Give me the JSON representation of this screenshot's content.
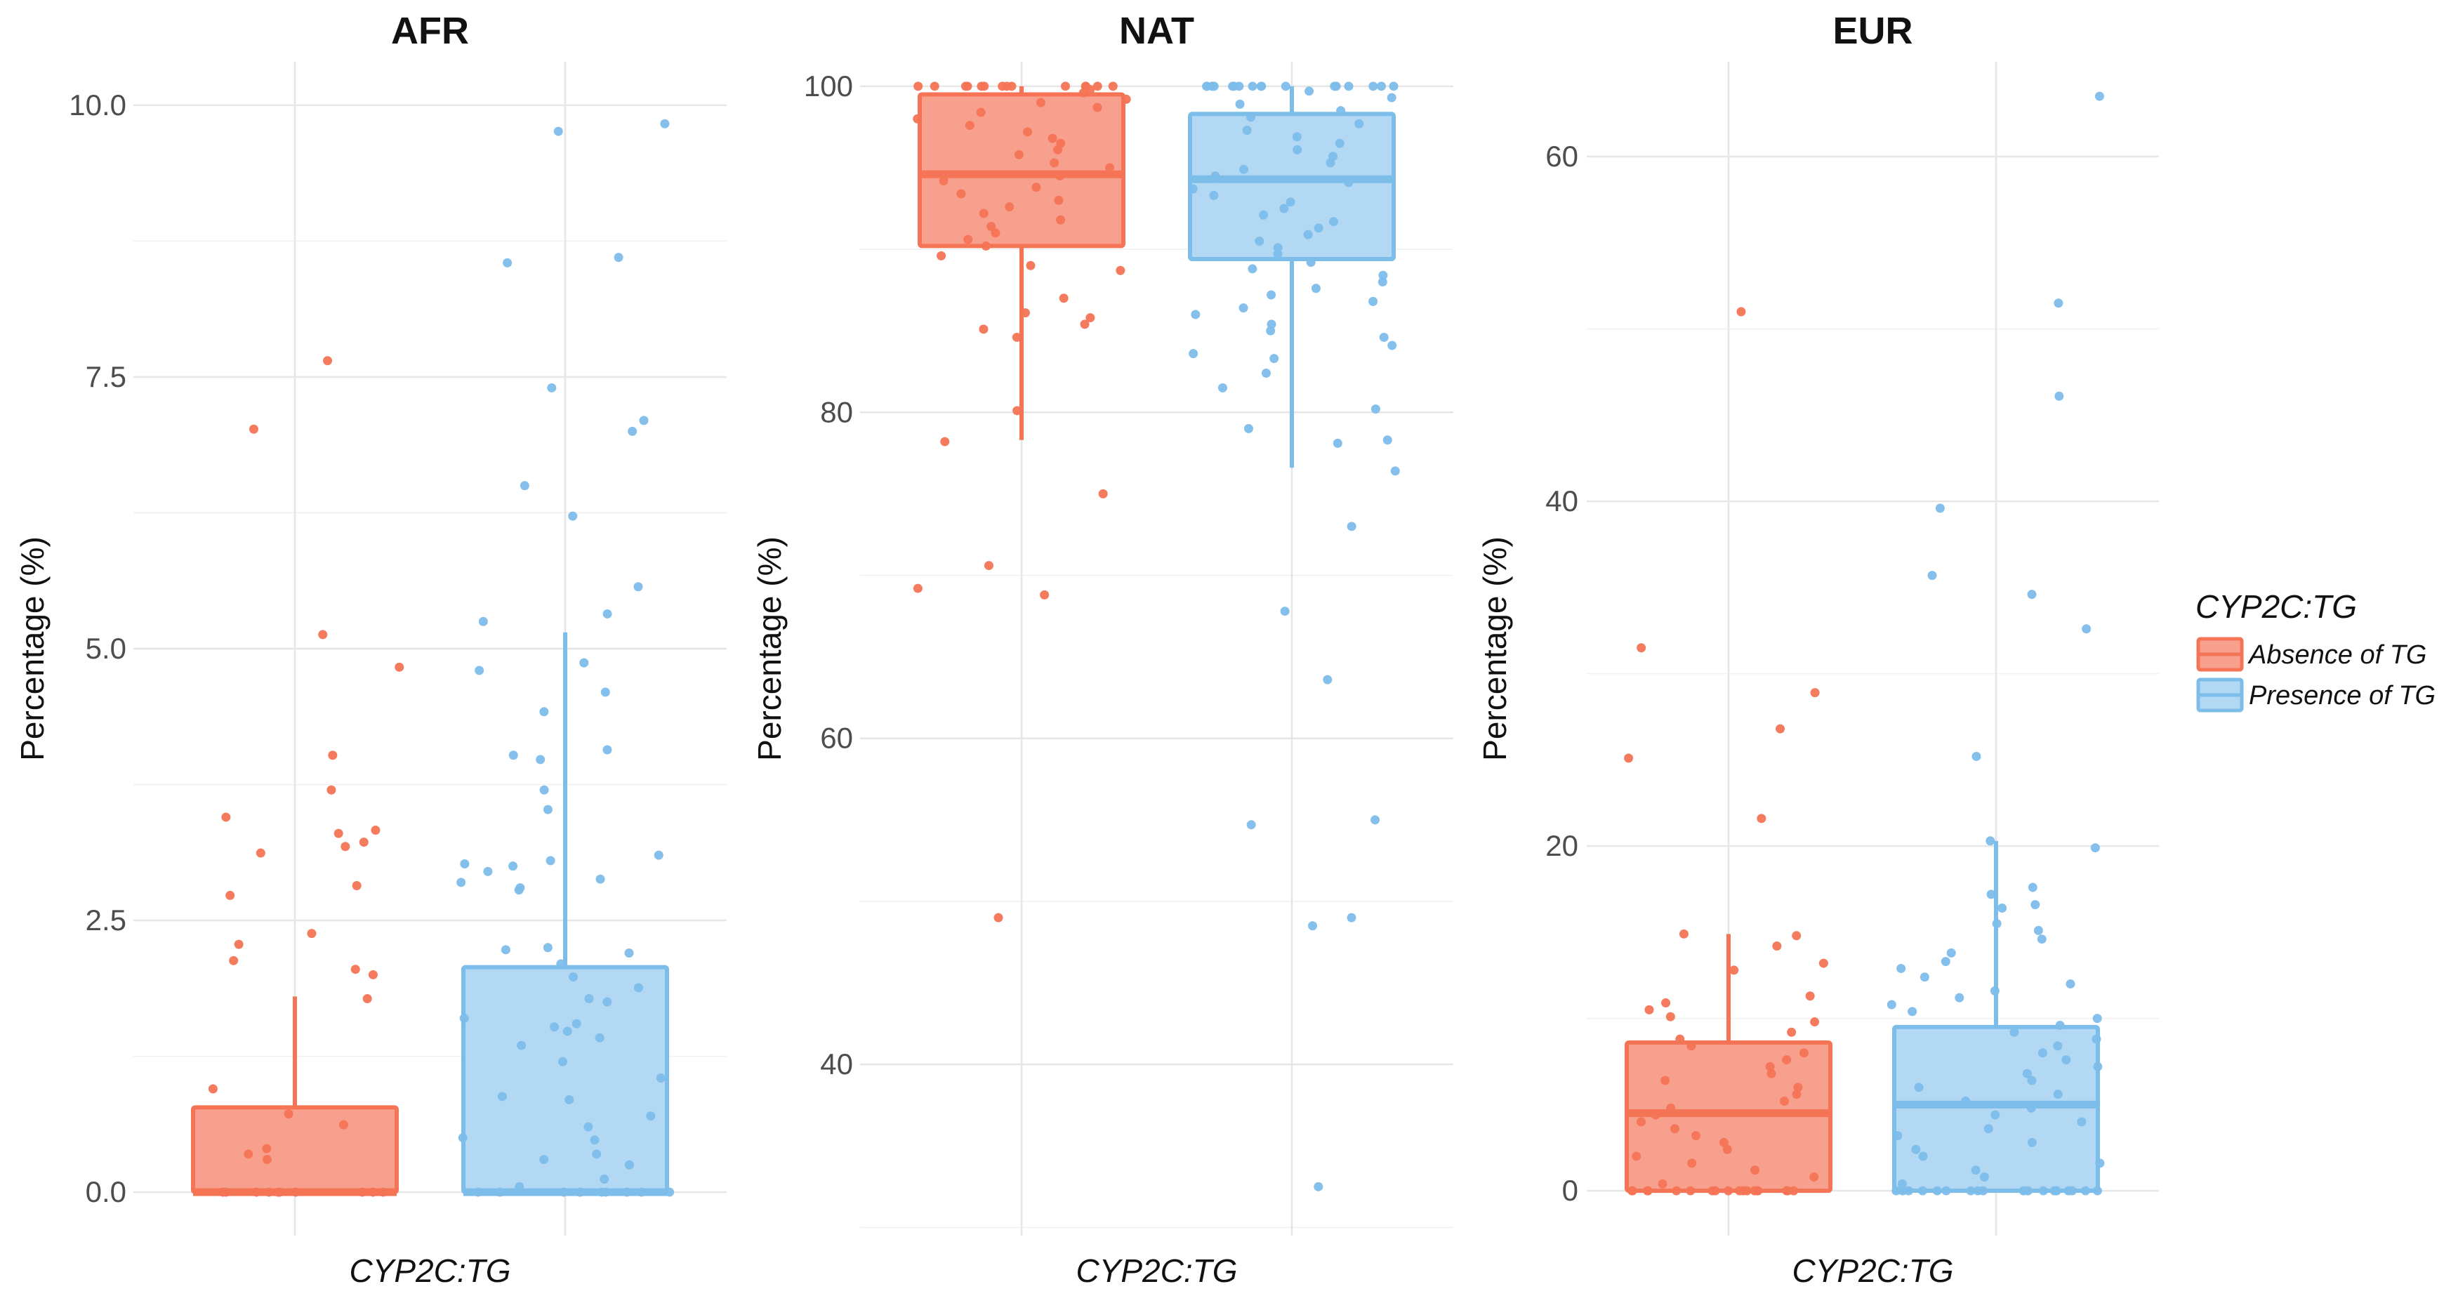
{
  "colors": {
    "absence_fill": "#F8A08E",
    "absence_line": "#F47455",
    "presence_fill": "#B3D8F4",
    "presence_line": "#7DBDEA",
    "grid_major": "#E6E6E6",
    "grid_minor": "#F1F1F1",
    "text": "#111111",
    "tick_text": "#4D4D4D"
  },
  "legend": {
    "title": "CYP2C:TG",
    "items": [
      {
        "key": "absence",
        "label": "Absence of TG"
      },
      {
        "key": "presence",
        "label": "Presence of TG"
      }
    ],
    "position": "right"
  },
  "chart_data": [
    {
      "type": "box",
      "title": "AFR",
      "xlabel": "CYP2C:TG",
      "ylabel": "Percentage (%)",
      "ylim": [
        -0.4,
        10.4
      ],
      "yticks": [
        "0.0",
        "2.5",
        "5.0",
        "7.5",
        "10.0"
      ],
      "ytick_values": [
        0,
        2.5,
        5,
        7.5,
        10
      ],
      "series": [
        {
          "name": "Absence of TG",
          "key": "absence",
          "box": {
            "q1": 0,
            "median": 0,
            "q3": 0.78,
            "whisker_low": 0,
            "whisker_high": 1.8
          },
          "points": [
            7.65,
            7.02,
            5.13,
            4.83,
            4.02,
            3.7,
            3.45,
            3.33,
            3.3,
            3.22,
            3.18,
            3.12,
            2.82,
            2.73,
            2.38,
            2.28,
            2.13,
            2.05,
            2.0,
            1.78,
            0.95,
            0.72,
            0.62,
            0.4,
            0.35,
            0.3,
            0,
            0,
            0,
            0,
            0,
            0,
            0,
            0,
            0,
            0
          ]
        },
        {
          "name": "Presence of TG",
          "key": "presence",
          "box": {
            "q1": 0,
            "median": 0,
            "q3": 2.07,
            "whisker_low": 0,
            "whisker_high": 5.15
          },
          "points": [
            9.83,
            9.76,
            8.6,
            8.55,
            7.4,
            7.1,
            7.0,
            6.5,
            6.22,
            5.57,
            5.32,
            5.25,
            4.87,
            4.8,
            4.6,
            4.42,
            4.07,
            4.02,
            3.98,
            3.7,
            3.52,
            3.1,
            3.05,
            3.02,
            3.0,
            2.95,
            2.88,
            2.85,
            2.8,
            2.78,
            2.25,
            2.23,
            2.2,
            2.1,
            1.98,
            1.88,
            1.78,
            1.75,
            1.6,
            1.55,
            1.52,
            1.48,
            1.42,
            1.35,
            1.2,
            1.05,
            0.88,
            0.85,
            0.7,
            0.6,
            0.5,
            0.48,
            0.35,
            0.3,
            0.25,
            0.12,
            0.05,
            0,
            0,
            0,
            0,
            0,
            0,
            0,
            0,
            0,
            0
          ]
        }
      ]
    },
    {
      "type": "box",
      "title": "NAT",
      "xlabel": "CYP2C:TG",
      "ylabel": "Percentage (%)",
      "ylim": [
        29.5,
        101.5
      ],
      "yticks": [
        "40",
        "60",
        "80",
        "100"
      ],
      "ytick_values": [
        40,
        60,
        80,
        100
      ],
      "series": [
        {
          "name": "Absence of TG",
          "key": "absence",
          "box": {
            "q1": 90.2,
            "median": 94.6,
            "q3": 99.5,
            "whisker_low": 78.3,
            "whisker_high": 100
          },
          "points": [
            100,
            100,
            100,
            100,
            100,
            100,
            100,
            100,
            100,
            100,
            100,
            100,
            100,
            100,
            99.8,
            99.6,
            99.2,
            99,
            98.7,
            98.4,
            98,
            97.6,
            97.2,
            96.8,
            96.5,
            96.1,
            95.8,
            95.3,
            95,
            94.5,
            94.2,
            93.8,
            93.4,
            93,
            92.6,
            92.2,
            91.8,
            91.4,
            91,
            90.6,
            90.2,
            89.6,
            89,
            88.7,
            87,
            86.1,
            85.8,
            85.4,
            85.1,
            84.6,
            80.1,
            78.2,
            75,
            70.6,
            69.2,
            68.8,
            49
          ]
        },
        {
          "name": "Presence of TG",
          "key": "presence",
          "box": {
            "q1": 89.4,
            "median": 94.3,
            "q3": 98.3,
            "whisker_low": 76.6,
            "whisker_high": 100
          },
          "points": [
            100,
            100,
            100,
            100,
            100,
            100,
            100,
            100,
            100,
            100,
            100,
            100,
            100,
            100,
            100,
            100,
            100,
            100,
            99.7,
            99.3,
            98.9,
            98.5,
            98.1,
            97.7,
            97.3,
            96.9,
            96.5,
            96.1,
            95.7,
            95.3,
            94.9,
            94.5,
            94.1,
            93.7,
            93.3,
            92.9,
            92.5,
            92.1,
            91.7,
            91.3,
            90.9,
            90.5,
            90.1,
            89.7,
            89.2,
            88.8,
            88.4,
            88,
            87.6,
            87.2,
            86.8,
            86.4,
            86,
            85.4,
            85,
            84.6,
            84.1,
            83.6,
            83.3,
            82.4,
            81.5,
            80.2,
            79,
            78.3,
            78.1,
            76.4,
            73,
            67.8,
            63.6,
            55,
            54.7,
            49,
            48.5,
            32.5
          ]
        }
      ]
    },
    {
      "type": "box",
      "title": "EUR",
      "xlabel": "CYP2C:TG",
      "ylabel": "Percentage (%)",
      "ylim": [
        -2.6,
        65.5
      ],
      "yticks": [
        "0",
        "20",
        "40",
        "60"
      ],
      "ytick_values": [
        0,
        20,
        40,
        60
      ],
      "series": [
        {
          "name": "Absence of TG",
          "key": "absence",
          "box": {
            "q1": 0,
            "median": 4.5,
            "q3": 8.6,
            "whisker_low": 0,
            "whisker_high": 14.9
          },
          "points": [
            51,
            31.5,
            28.9,
            26.8,
            25.1,
            21.6,
            14.9,
            14.8,
            14.2,
            13.2,
            12.8,
            11.3,
            10.9,
            10.5,
            10.1,
            9.8,
            9.2,
            8.8,
            8.4,
            8.0,
            7.6,
            7.2,
            6.8,
            6.4,
            6.0,
            5.6,
            5.2,
            4.8,
            4.4,
            4.0,
            3.6,
            3.2,
            2.8,
            2.4,
            2.0,
            1.6,
            1.2,
            0.8,
            0.4,
            0,
            0,
            0,
            0,
            0,
            0,
            0,
            0,
            0,
            0,
            0,
            0,
            0,
            0,
            0,
            0,
            0,
            0
          ]
        },
        {
          "name": "Presence of TG",
          "key": "presence",
          "box": {
            "q1": 0,
            "median": 5.0,
            "q3": 9.5,
            "whisker_low": 0,
            "whisker_high": 20.3
          },
          "points": [
            63.5,
            51.5,
            46.1,
            39.6,
            35.7,
            34.6,
            32.6,
            25.2,
            20.3,
            19.9,
            17.6,
            17.2,
            16.6,
            16.4,
            15.5,
            15.1,
            14.6,
            13.8,
            13.3,
            12.9,
            12.4,
            12.0,
            11.6,
            11.2,
            10.8,
            10.4,
            10.0,
            9.6,
            9.2,
            8.8,
            8.4,
            8.0,
            7.6,
            7.2,
            6.8,
            6.4,
            6.0,
            5.6,
            5.2,
            4.8,
            4.4,
            4.0,
            3.6,
            3.2,
            2.8,
            2.4,
            2.0,
            1.6,
            1.2,
            0.8,
            0.4,
            0,
            0,
            0,
            0,
            0,
            0,
            0,
            0,
            0,
            0,
            0,
            0,
            0,
            0,
            0,
            0,
            0,
            0
          ]
        }
      ]
    }
  ]
}
